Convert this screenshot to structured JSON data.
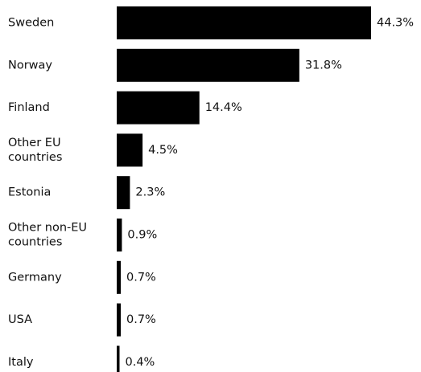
{
  "chart_data": {
    "type": "bar",
    "orientation": "horizontal",
    "title": "",
    "xlabel": "",
    "ylabel": "",
    "categories": [
      "Sweden",
      "Norway",
      "Finland",
      "Other EU countries",
      "Estonia",
      "Other non-EU countries",
      "Germany",
      "USA",
      "Italy"
    ],
    "values": [
      44.3,
      31.8,
      14.4,
      4.5,
      2.3,
      0.9,
      0.7,
      0.7,
      0.4
    ],
    "value_labels": [
      "44.3%",
      "31.8%",
      "14.4%",
      "4.5%",
      "2.3%",
      "0.9%",
      "0.7%",
      "0.7%",
      "0.4%"
    ],
    "xlim": [
      0,
      44.3
    ],
    "grid": false,
    "legend": "none",
    "bar_color": "#000000"
  }
}
